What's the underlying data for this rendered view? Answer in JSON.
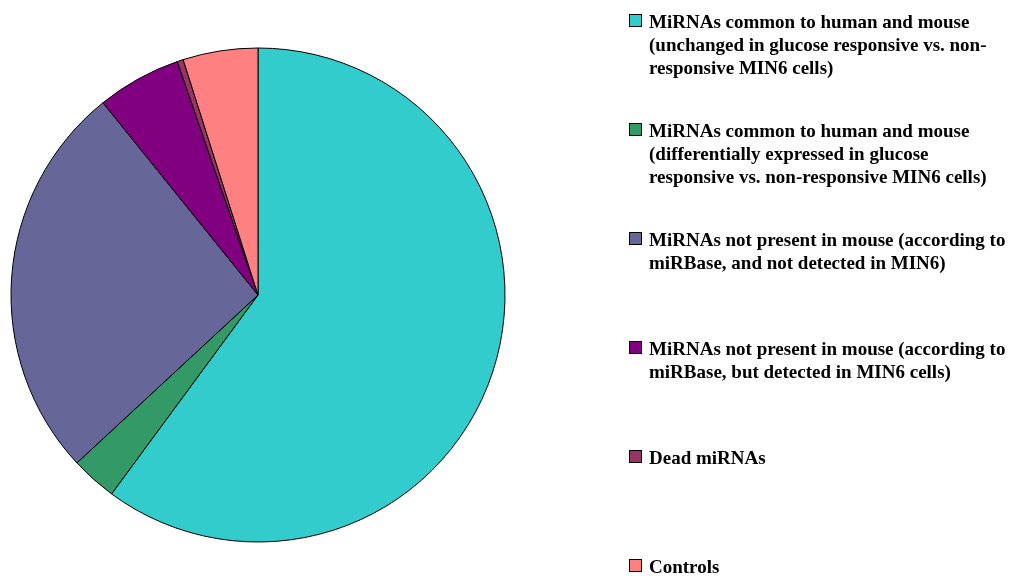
{
  "chart_data": {
    "type": "pie",
    "categories": [
      "MiRNAs common to human and mouse (unchanged in glucose responsive vs. non-responsive MIN6 cells)",
      "MiRNAs common to human and mouse (differentially expressed in glucose responsive vs. non-responsive MIN6 cells)",
      "MiRNAs not present in mouse (according to miRBase, and not detected in MIN6)",
      "MiRNAs not present in mouse (according to miRBase, but detected in MIN6 cells)",
      "Dead miRNAs",
      "Controls"
    ],
    "values": [
      60.1,
      3.0,
      26.1,
      5.5,
      0.4,
      4.9
    ],
    "colors": [
      "#33cccc",
      "#339966",
      "#666699",
      "#800080",
      "#993366",
      "#ff8080"
    ],
    "legend": "right"
  }
}
